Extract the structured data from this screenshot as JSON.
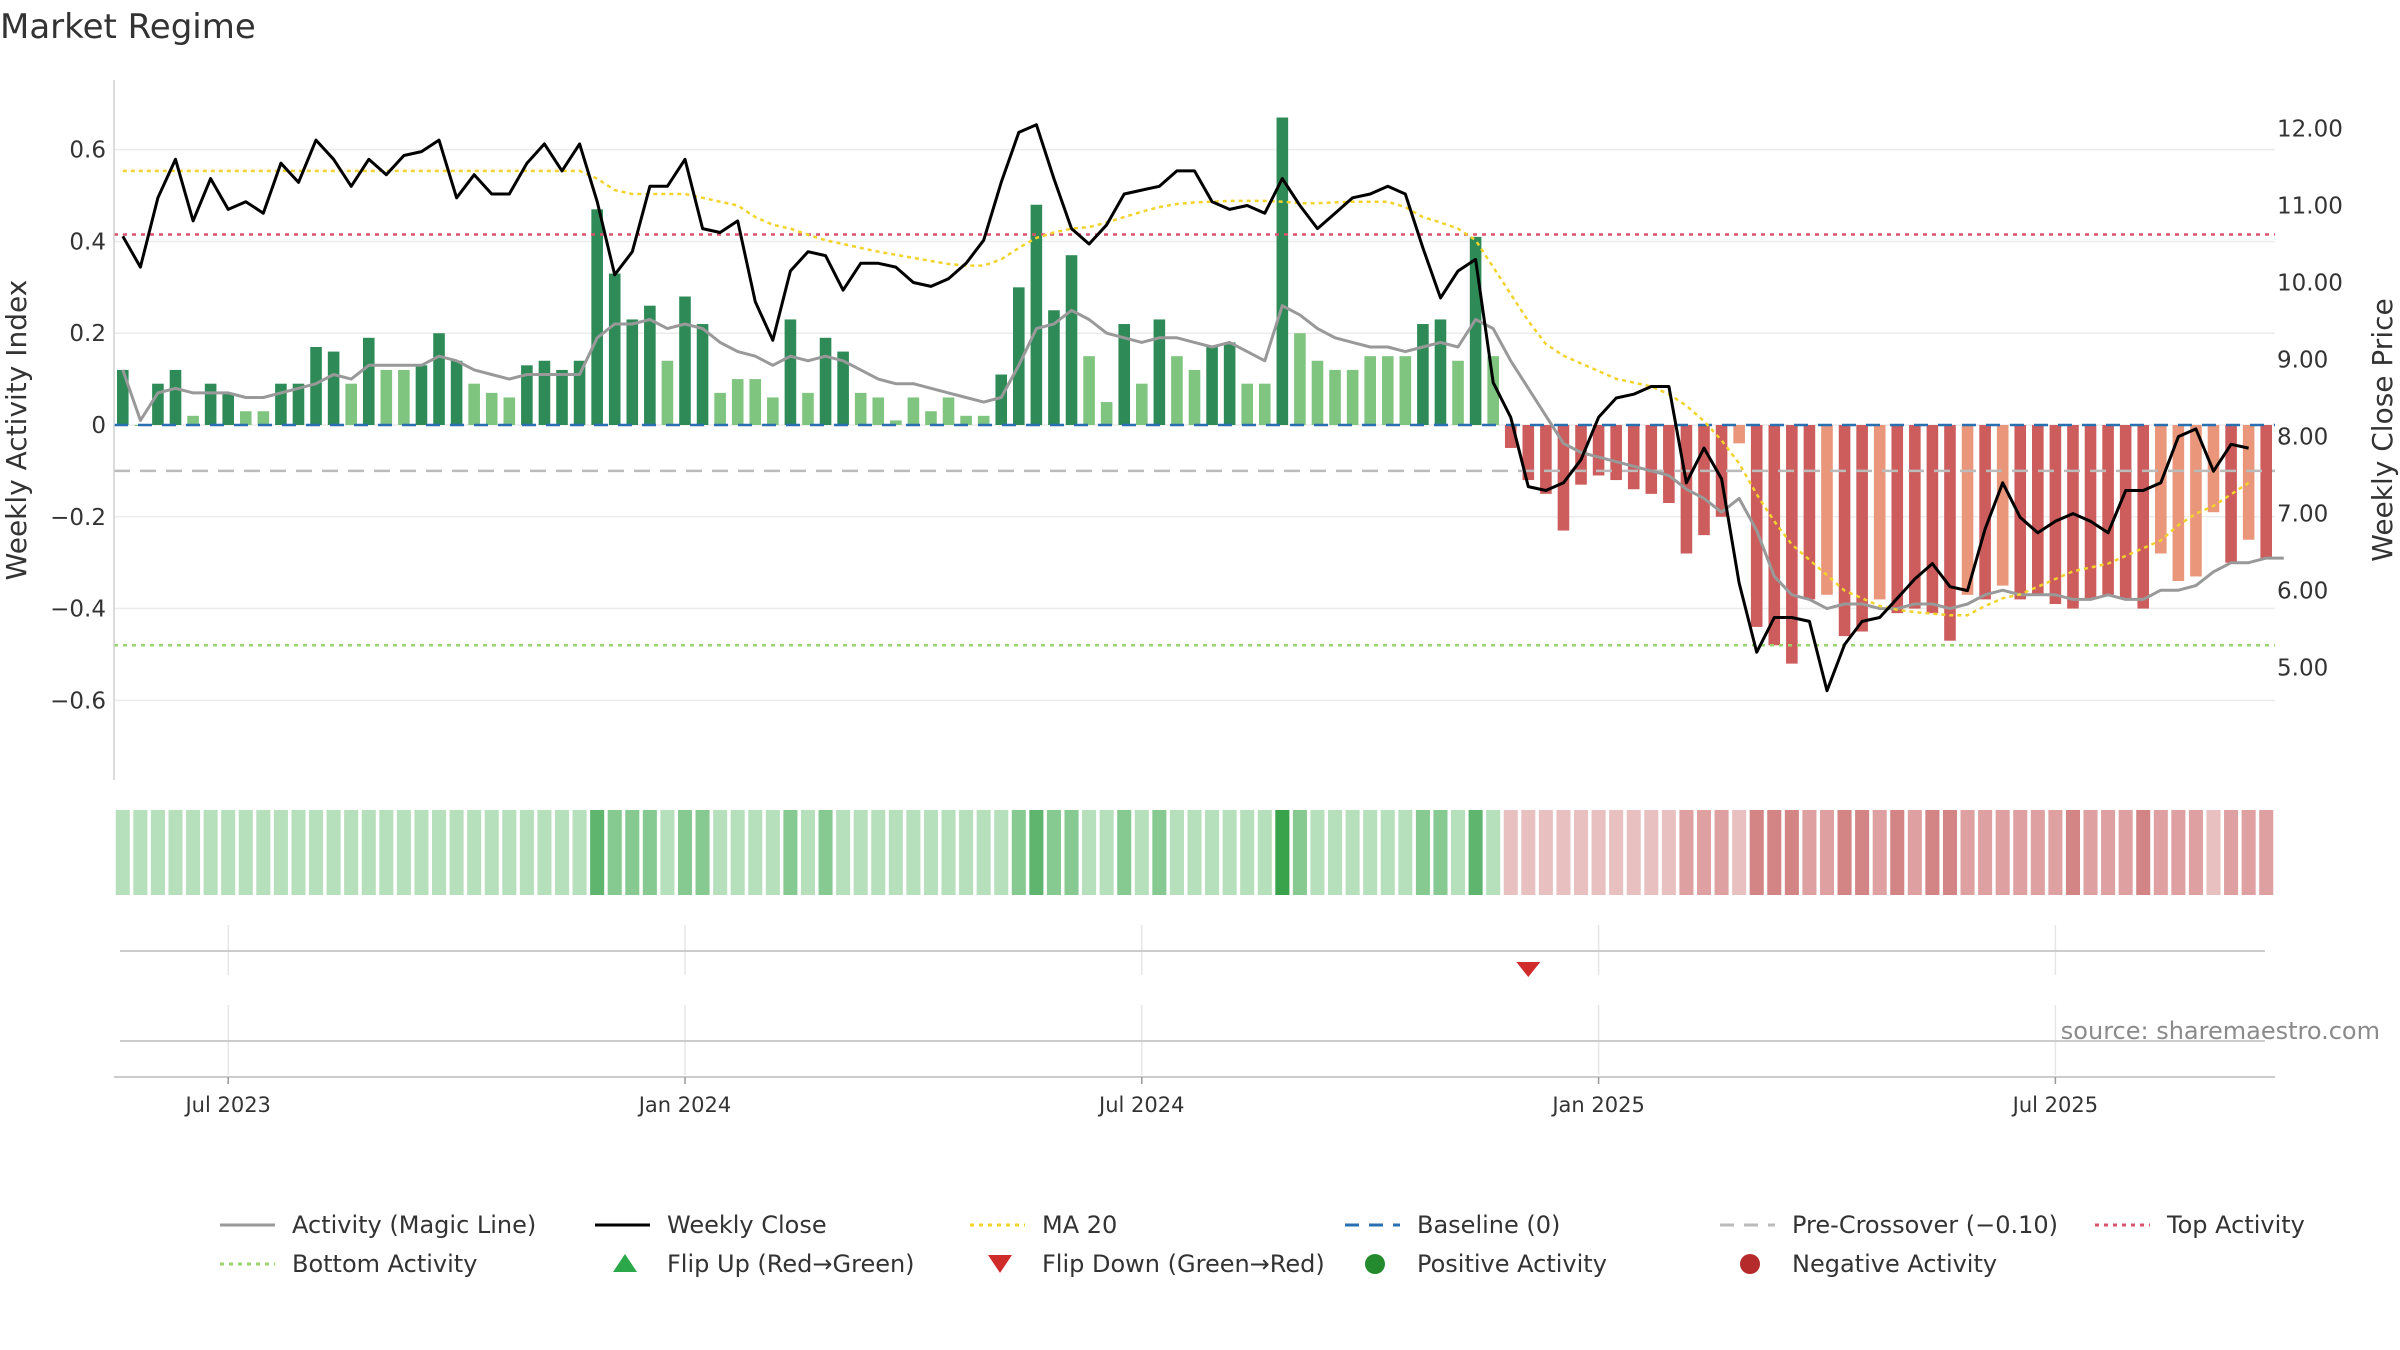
{
  "chart_data": {
    "type": "bar",
    "title": "Market Regime",
    "ylabel_left": "Weekly Activity Index",
    "ylabel_right": "Weekly Close Price",
    "source": "source: sharemaestro.com",
    "ylim_left": [
      -0.73,
      0.73
    ],
    "ylim_right": [
      3.8,
      12.5
    ],
    "yticks_left": [
      {
        "v": 0.6,
        "label": "0.6"
      },
      {
        "v": 0.4,
        "label": "0.4"
      },
      {
        "v": 0.2,
        "label": "0.2"
      },
      {
        "v": 0,
        "label": "0"
      },
      {
        "v": -0.2,
        "label": "−0.2"
      },
      {
        "v": -0.4,
        "label": "−0.4"
      },
      {
        "v": -0.6,
        "label": "−0.6"
      }
    ],
    "yticks_right": [
      {
        "v": 12,
        "label": "12.00"
      },
      {
        "v": 11,
        "label": "11.00"
      },
      {
        "v": 10,
        "label": "10.00"
      },
      {
        "v": 9,
        "label": "9.00"
      },
      {
        "v": 8,
        "label": "8.00"
      },
      {
        "v": 7,
        "label": "7.00"
      },
      {
        "v": 6,
        "label": "6.00"
      },
      {
        "v": 5,
        "label": "5.00"
      }
    ],
    "xticks": [
      {
        "week": 6,
        "label": "Jul 2023"
      },
      {
        "week": 32,
        "label": "Jan 2024"
      },
      {
        "week": 58,
        "label": "Jul 2024"
      },
      {
        "week": 84,
        "label": "Jan 2025"
      },
      {
        "week": 110,
        "label": "Jul 2025"
      }
    ],
    "reference_lines": {
      "baseline": 0,
      "pre_crossover": -0.1,
      "top_activity": 0.415,
      "bottom_activity": -0.48
    },
    "activity": [
      0.12,
      0.0,
      0.09,
      0.12,
      0.02,
      0.09,
      0.07,
      0.03,
      0.03,
      0.09,
      0.09,
      0.17,
      0.16,
      0.09,
      0.19,
      0.12,
      0.12,
      0.13,
      0.2,
      0.14,
      0.09,
      0.07,
      0.06,
      0.13,
      0.14,
      0.12,
      0.14,
      0.47,
      0.33,
      0.23,
      0.26,
      0.14,
      0.28,
      0.22,
      0.07,
      0.1,
      0.1,
      0.06,
      0.23,
      0.07,
      0.19,
      0.16,
      0.07,
      0.06,
      0.01,
      0.06,
      0.03,
      0.06,
      0.02,
      0.02,
      0.11,
      0.3,
      0.48,
      0.25,
      0.37,
      0.15,
      0.05,
      0.22,
      0.09,
      0.23,
      0.15,
      0.12,
      0.17,
      0.18,
      0.09,
      0.09,
      0.67,
      0.2,
      0.14,
      0.12,
      0.12,
      0.15,
      0.15,
      0.15,
      0.22,
      0.23,
      0.14,
      0.41,
      0.15,
      -0.05,
      -0.12,
      -0.15,
      -0.23,
      -0.13,
      -0.11,
      -0.12,
      -0.14,
      -0.15,
      -0.17,
      -0.28,
      -0.24,
      -0.2,
      -0.04,
      -0.44,
      -0.48,
      -0.52,
      -0.38,
      -0.37,
      -0.46,
      -0.45,
      -0.38,
      -0.41,
      -0.4,
      -0.41,
      -0.47,
      -0.37,
      -0.38,
      -0.35,
      -0.38,
      -0.37,
      -0.39,
      -0.4,
      -0.38,
      -0.37,
      -0.38,
      -0.4,
      -0.28,
      -0.34,
      -0.33,
      -0.19,
      -0.3,
      -0.25,
      -0.29
    ],
    "magic_line": [
      0.12,
      0.01,
      0.07,
      0.08,
      0.07,
      0.07,
      0.07,
      0.06,
      0.06,
      0.07,
      0.08,
      0.09,
      0.11,
      0.1,
      0.13,
      0.13,
      0.13,
      0.13,
      0.15,
      0.14,
      0.12,
      0.11,
      0.1,
      0.11,
      0.11,
      0.11,
      0.11,
      0.19,
      0.22,
      0.22,
      0.23,
      0.21,
      0.22,
      0.21,
      0.18,
      0.16,
      0.15,
      0.13,
      0.15,
      0.14,
      0.15,
      0.14,
      0.12,
      0.1,
      0.09,
      0.09,
      0.08,
      0.07,
      0.06,
      0.05,
      0.06,
      0.13,
      0.21,
      0.22,
      0.25,
      0.23,
      0.2,
      0.19,
      0.18,
      0.19,
      0.19,
      0.18,
      0.17,
      0.18,
      0.16,
      0.14,
      0.26,
      0.24,
      0.21,
      0.19,
      0.18,
      0.17,
      0.17,
      0.16,
      0.17,
      0.18,
      0.17,
      0.23,
      0.21,
      0.14,
      0.08,
      0.02,
      -0.04,
      -0.06,
      -0.07,
      -0.08,
      -0.09,
      -0.1,
      -0.11,
      -0.14,
      -0.16,
      -0.19,
      -0.16,
      -0.23,
      -0.33,
      -0.37,
      -0.38,
      -0.4,
      -0.39,
      -0.39,
      -0.4,
      -0.4,
      -0.39,
      -0.39,
      -0.4,
      -0.39,
      -0.37,
      -0.36,
      -0.37,
      -0.37,
      -0.37,
      -0.38,
      -0.38,
      -0.37,
      -0.38,
      -0.38,
      -0.36,
      -0.36,
      -0.35,
      -0.32,
      -0.3,
      -0.3,
      -0.29,
      -0.29
    ],
    "weekly_close": [
      10.6,
      10.2,
      11.1,
      11.6,
      10.8,
      11.35,
      10.95,
      11.05,
      10.9,
      11.55,
      11.3,
      11.85,
      11.6,
      11.25,
      11.6,
      11.4,
      11.65,
      11.7,
      11.85,
      11.1,
      11.4,
      11.15,
      11.15,
      11.55,
      11.8,
      11.45,
      11.8,
      11.05,
      10.1,
      10.4,
      11.25,
      11.25,
      11.6,
      10.7,
      10.65,
      10.8,
      9.75,
      9.25,
      10.15,
      10.4,
      10.35,
      9.9,
      10.25,
      10.25,
      10.2,
      10.0,
      9.95,
      10.05,
      10.25,
      10.55,
      11.3,
      11.95,
      12.05,
      11.35,
      10.7,
      10.5,
      10.75,
      11.15,
      11.2,
      11.25,
      11.45,
      11.45,
      11.05,
      10.95,
      11.0,
      10.9,
      11.35,
      11.0,
      10.7,
      10.9,
      11.1,
      11.15,
      11.25,
      11.15,
      10.45,
      9.8,
      10.15,
      10.3,
      8.7,
      8.25,
      7.35,
      7.3,
      7.4,
      7.7,
      8.25,
      8.5,
      8.55,
      8.65,
      8.65,
      7.4,
      7.85,
      7.45,
      6.1,
      5.2,
      5.65,
      5.65,
      5.6,
      4.7,
      5.3,
      5.6,
      5.65,
      5.9,
      6.15,
      6.35,
      6.05,
      6.0,
      6.8,
      7.4,
      6.95,
      6.75,
      6.9,
      7.0,
      6.9,
      6.75,
      7.3,
      7.3,
      7.4,
      8.0,
      8.1,
      7.55,
      7.9,
      7.85
    ],
    "ma20": [
      11.45,
      11.45,
      11.45,
      11.45,
      11.45,
      11.45,
      11.45,
      11.45,
      11.45,
      11.45,
      11.45,
      11.45,
      11.45,
      11.45,
      11.45,
      11.45,
      11.45,
      11.45,
      11.45,
      11.45,
      11.45,
      11.45,
      11.45,
      11.45,
      11.45,
      11.45,
      11.45,
      11.35,
      11.2,
      11.15,
      11.15,
      11.15,
      11.15,
      11.1,
      11.05,
      11.0,
      10.85,
      10.75,
      10.7,
      10.62,
      10.55,
      10.5,
      10.45,
      10.4,
      10.36,
      10.32,
      10.28,
      10.24,
      10.22,
      10.22,
      10.3,
      10.45,
      10.58,
      10.65,
      10.7,
      10.72,
      10.78,
      10.85,
      10.92,
      10.98,
      11.02,
      11.04,
      11.05,
      11.06,
      11.06,
      11.06,
      11.05,
      11.03,
      11.03,
      11.04,
      11.05,
      11.05,
      11.05,
      10.98,
      10.85,
      10.78,
      10.7,
      10.55,
      10.2,
      9.85,
      9.5,
      9.2,
      9.05,
      8.95,
      8.85,
      8.75,
      8.7,
      8.65,
      8.55,
      8.4,
      8.2,
      7.95,
      7.65,
      7.25,
      6.9,
      6.6,
      6.4,
      6.2,
      6.0,
      5.9,
      5.8,
      5.75,
      5.72,
      5.7,
      5.68,
      5.68,
      5.8,
      5.9,
      5.95,
      6.05,
      6.15,
      6.25,
      6.3,
      6.35,
      6.45,
      6.55,
      6.65,
      6.85,
      7.0,
      7.1,
      7.25,
      7.4
    ],
    "band_intensity": [
      1,
      1,
      1,
      1,
      1,
      1,
      1,
      1,
      1,
      1,
      1,
      1,
      1,
      1,
      1,
      1,
      1,
      1,
      1,
      1,
      1,
      1,
      1,
      1,
      1,
      1,
      1,
      3,
      2,
      2,
      2,
      1,
      2,
      2,
      1,
      1,
      1,
      1,
      2,
      1,
      2,
      1,
      1,
      1,
      1,
      1,
      1,
      1,
      1,
      1,
      1,
      2,
      3,
      2,
      2,
      1,
      1,
      2,
      1,
      2,
      1,
      1,
      1,
      1,
      1,
      1,
      4,
      2,
      1,
      1,
      1,
      1,
      1,
      1,
      2,
      2,
      1,
      3,
      1,
      1,
      1,
      1,
      1,
      1,
      1,
      1,
      1,
      1,
      1,
      2,
      2,
      2,
      1,
      3,
      3,
      3,
      2,
      2,
      3,
      3,
      2,
      3,
      2,
      3,
      3,
      2,
      2,
      2,
      2,
      2,
      2,
      3,
      2,
      2,
      2,
      3,
      2,
      2,
      2,
      1,
      2,
      2,
      2
    ],
    "flip_down_week": 80
  },
  "legend": [
    {
      "key": "magic",
      "label": "Activity (Magic Line)",
      "color": "#999999",
      "style": "solid"
    },
    {
      "key": "close",
      "label": "Weekly Close",
      "color": "#000000",
      "style": "solid"
    },
    {
      "key": "ma20",
      "label": "MA 20",
      "color": "#f2d32c",
      "style": "dotted"
    },
    {
      "key": "baseline",
      "label": "Baseline (0)",
      "color": "#2a6fb0",
      "style": "dashed"
    },
    {
      "key": "precross",
      "label": "Pre-Crossover (−0.10)",
      "color": "#bbbbbb",
      "style": "dashed"
    },
    {
      "key": "top",
      "label": "Top Activity",
      "color": "#d9536f",
      "style": "dotted"
    },
    {
      "key": "bottom",
      "label": "Bottom Activity",
      "color": "#9ad46a",
      "style": "dotted"
    },
    {
      "key": "flipup",
      "label": "Flip Up (Red→Green)",
      "color": "#2aa84a",
      "style": "triangle-up"
    },
    {
      "key": "flipdown",
      "label": "Flip Down (Green→Red)",
      "color": "#d12c2c",
      "style": "triangle-down"
    },
    {
      "key": "pos",
      "label": "Positive Activity",
      "color": "#238b2d",
      "style": "circle"
    },
    {
      "key": "neg",
      "label": "Negative Activity",
      "color": "#b52a2a",
      "style": "circle"
    }
  ],
  "colors": {
    "pos_strong": "#2e8b57",
    "pos_weak": "#7fc47f",
    "neg_strong": "#cd5c5c",
    "neg_weak": "#e9967a",
    "band_pos": [
      "#d4ecd6",
      "#b6dfbb",
      "#86ca91",
      "#5fb56d",
      "#38a34a"
    ],
    "band_neg": [
      "#f0d0d0",
      "#e8c0c0",
      "#dea0a0",
      "#d38484",
      "#c76a6a"
    ]
  }
}
